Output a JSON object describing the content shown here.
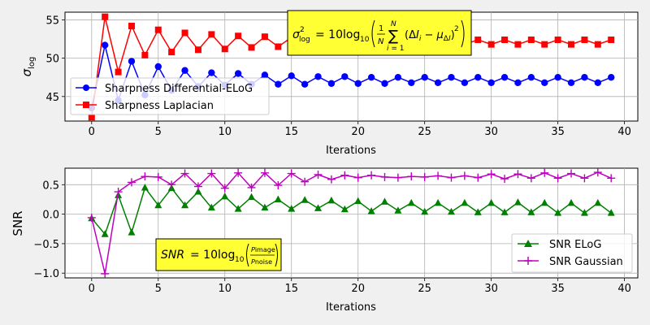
{
  "chart_data": [
    {
      "type": "line",
      "xlabel": "Iterations",
      "ylabel": "σ",
      "ylabel_sub": "log",
      "xlim": [
        -2,
        41
      ],
      "ylim": [
        41.8,
        56
      ],
      "xticks": [
        0,
        5,
        10,
        15,
        20,
        25,
        30,
        35,
        40
      ],
      "yticks": [
        45,
        50,
        55
      ],
      "grid": true,
      "legend_position": "center-left",
      "annotation": "σ²log = 10 log10( 1/N ∑ i=1..N (ΔI_i − μ_ΔI)² )",
      "series": [
        {
          "name": "Sharpness Differential-ELoG",
          "color": "#0000ff",
          "marker": "circle",
          "x": [
            0,
            1,
            2,
            3,
            4,
            5,
            6,
            7,
            8,
            9,
            10,
            11,
            12,
            13,
            14,
            15,
            16,
            17,
            18,
            19,
            20,
            21,
            22,
            23,
            24,
            25,
            26,
            27,
            28,
            29,
            30,
            31,
            32,
            33,
            34,
            35,
            36,
            37,
            38,
            39
          ],
          "values": [
            43.5,
            51.7,
            44.5,
            49.6,
            45.2,
            48.9,
            45.8,
            48.4,
            46.3,
            48.1,
            46.5,
            48.0,
            46.6,
            47.8,
            46.6,
            47.7,
            46.6,
            47.6,
            46.7,
            47.6,
            46.7,
            47.5,
            46.7,
            47.5,
            46.8,
            47.5,
            46.8,
            47.5,
            46.8,
            47.5,
            46.8,
            47.5,
            46.8,
            47.5,
            46.8,
            47.5,
            46.8,
            47.5,
            46.8,
            47.5
          ]
        },
        {
          "name": "Sharpness Laplacian",
          "color": "#ff0000",
          "marker": "square",
          "x": [
            0,
            1,
            2,
            3,
            4,
            5,
            6,
            7,
            8,
            9,
            10,
            11,
            12,
            13,
            14,
            15,
            16,
            17,
            18,
            19,
            20,
            21,
            22,
            23,
            24,
            25,
            26,
            27,
            28,
            29,
            30,
            31,
            32,
            33,
            34,
            35,
            36,
            37,
            38,
            39
          ],
          "values": [
            42.3,
            55.4,
            48.2,
            54.2,
            50.4,
            53.7,
            50.8,
            53.3,
            51.1,
            53.1,
            51.2,
            52.9,
            51.4,
            52.8,
            51.5,
            52.7,
            51.6,
            52.6,
            51.6,
            52.6,
            51.7,
            52.5,
            51.7,
            52.5,
            51.7,
            52.5,
            51.7,
            52.5,
            51.8,
            52.4,
            51.8,
            52.4,
            51.8,
            52.4,
            51.8,
            52.4,
            51.8,
            52.4,
            51.8,
            52.4
          ]
        }
      ]
    },
    {
      "type": "line",
      "xlabel": "Iterations",
      "ylabel": "SNR",
      "xlim": [
        -2,
        41
      ],
      "ylim": [
        -1.08,
        0.78
      ],
      "xticks": [
        0,
        5,
        10,
        15,
        20,
        25,
        30,
        35,
        40
      ],
      "yticks": [
        -1.0,
        -0.5,
        0.0,
        0.5
      ],
      "grid": true,
      "legend_position": "lower-right",
      "annotation": "SNR = 10 log10( P_image / P_noise )",
      "series": [
        {
          "name": "SNR ELoG",
          "color": "#008000",
          "marker": "triangle",
          "x": [
            0,
            1,
            2,
            3,
            4,
            5,
            6,
            7,
            8,
            9,
            10,
            11,
            12,
            13,
            14,
            15,
            16,
            17,
            18,
            19,
            20,
            21,
            22,
            23,
            24,
            25,
            26,
            27,
            28,
            29,
            30,
            31,
            32,
            33,
            34,
            35,
            36,
            37,
            38,
            39
          ],
          "values": [
            -0.07,
            -0.34,
            0.32,
            -0.31,
            0.45,
            0.15,
            0.44,
            0.15,
            0.38,
            0.11,
            0.3,
            0.09,
            0.29,
            0.11,
            0.25,
            0.09,
            0.24,
            0.1,
            0.23,
            0.08,
            0.22,
            0.05,
            0.21,
            0.06,
            0.19,
            0.04,
            0.19,
            0.04,
            0.19,
            0.03,
            0.19,
            0.03,
            0.2,
            0.03,
            0.19,
            0.02,
            0.19,
            0.02,
            0.19,
            0.02
          ]
        },
        {
          "name": "SNR Gaussian",
          "color": "#bf00bf",
          "marker": "plus",
          "x": [
            0,
            1,
            2,
            3,
            4,
            5,
            6,
            7,
            8,
            9,
            10,
            11,
            12,
            13,
            14,
            15,
            16,
            17,
            18,
            19,
            20,
            21,
            22,
            23,
            24,
            25,
            26,
            27,
            28,
            29,
            30,
            31,
            32,
            33,
            34,
            35,
            36,
            37,
            38,
            39
          ],
          "values": [
            -0.06,
            -1.01,
            0.38,
            0.54,
            0.64,
            0.63,
            0.5,
            0.69,
            0.47,
            0.69,
            0.44,
            0.7,
            0.45,
            0.7,
            0.49,
            0.69,
            0.55,
            0.67,
            0.59,
            0.66,
            0.62,
            0.66,
            0.63,
            0.62,
            0.64,
            0.63,
            0.65,
            0.62,
            0.65,
            0.62,
            0.68,
            0.6,
            0.68,
            0.61,
            0.7,
            0.61,
            0.69,
            0.61,
            0.71,
            0.61
          ]
        }
      ]
    }
  ]
}
